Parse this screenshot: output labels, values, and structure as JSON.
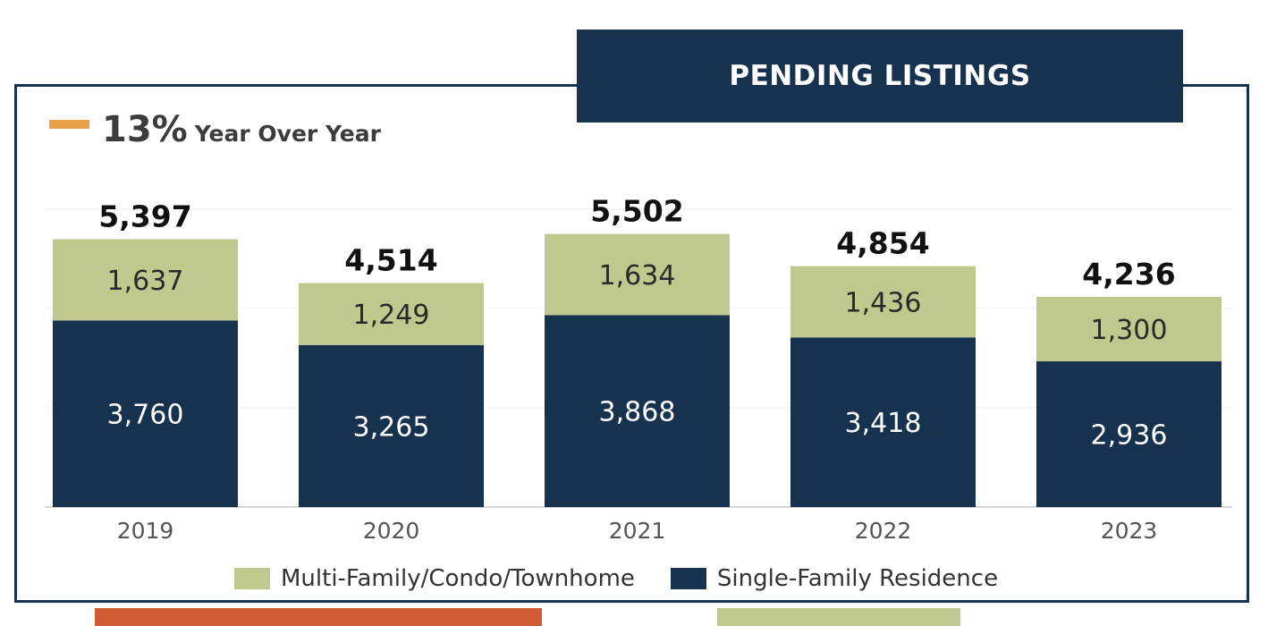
{
  "header": {
    "title": "PENDING LISTINGS"
  },
  "summary": {
    "percent": "13%",
    "label": "Year Over Year",
    "accent_color": "#e8a04a"
  },
  "chart_data": {
    "type": "bar",
    "stacked": true,
    "categories": [
      "2019",
      "2020",
      "2021",
      "2022",
      "2023"
    ],
    "series": [
      {
        "name": "Single-Family Residence",
        "color": "#16324f",
        "values": [
          3760,
          3265,
          3868,
          3418,
          2936
        ],
        "labels": [
          "3,760",
          "3,265",
          "3,868",
          "3,418",
          "2,936"
        ]
      },
      {
        "name": "Multi-Family/Condo/Townhome",
        "color": "#bfc98d",
        "values": [
          1637,
          1249,
          1634,
          1436,
          1300
        ],
        "labels": [
          "1,637",
          "1,249",
          "1,634",
          "1,436",
          "1,300"
        ]
      }
    ],
    "totals": [
      "5,397",
      "4,514",
      "5,502",
      "4,854",
      "4,236"
    ],
    "ylim": [
      0,
      6000
    ],
    "grid": true,
    "legend_position": "bottom"
  }
}
